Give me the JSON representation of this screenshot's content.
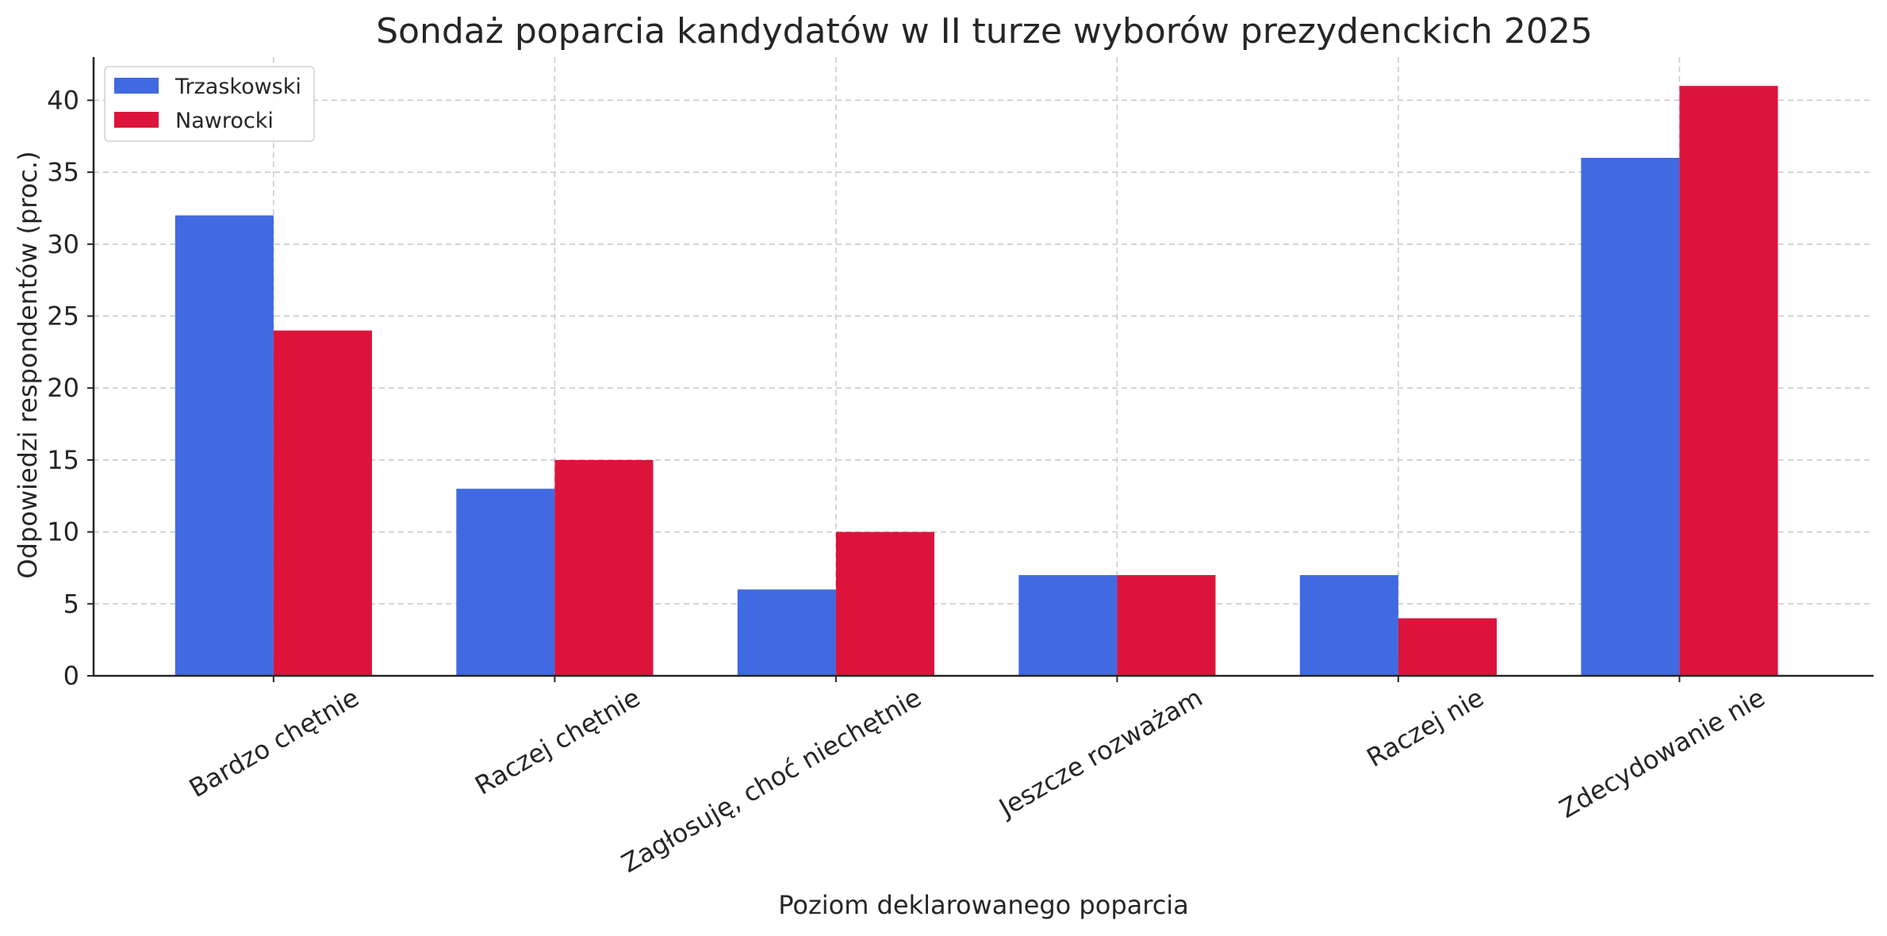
{
  "chart_data": {
    "type": "bar",
    "title": "Sondaż poparcia kandydatów w II turze wyborów prezydenckich 2025",
    "xlabel": "Poziom deklarowanego poparcia",
    "ylabel": "Odpowiedzi respondentów (proc.)",
    "categories": [
      "Bardzo chętnie",
      "Raczej chętnie",
      "Zagłosuję, choć niechętnie",
      "Jeszcze rozważam",
      "Raczej nie",
      "Zdecydowanie nie"
    ],
    "series": [
      {
        "name": "Trzaskowski",
        "color": "#4169e1",
        "values": [
          32,
          13,
          6,
          7,
          7,
          36
        ]
      },
      {
        "name": "Nawrocki",
        "color": "#dc143c",
        "values": [
          24,
          15,
          10,
          7,
          4,
          41
        ]
      }
    ],
    "ylim": [
      0,
      43
    ],
    "yticks": [
      0,
      5,
      10,
      15,
      20,
      25,
      30,
      35,
      40
    ],
    "grid": true,
    "legend_position": "top-left"
  }
}
